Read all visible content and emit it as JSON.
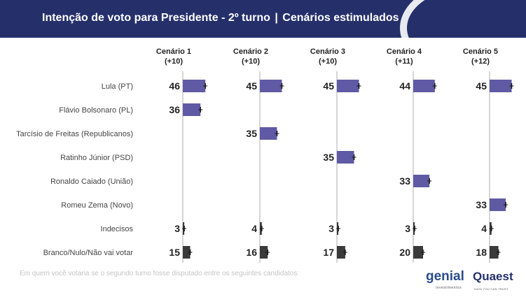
{
  "title": "Intenção de voto para Presidente - 2º turno | Cenários estimulados",
  "title_main": "Intenção de voto para Presidente - 2º turno",
  "title_sep": "|",
  "title_sub": "Cenários estimulados",
  "footnote": "Em quem você votaria se o segundo turno fosse disputado entre os seguintes candidatos:",
  "logos": {
    "genial": "genial",
    "genial_sub": "investimentos",
    "quaest": "Quaest",
    "quaest_sub": "DATA YOU CAN TRUST"
  },
  "colors": {
    "candidate_bar": "#5f5aa3",
    "other_bar": "#3a3a3a",
    "header_bg": "#25306b",
    "axis": "#c8c8c8"
  },
  "chart_data": {
    "type": "bar",
    "orientation": "horizontal",
    "rows": [
      "Lula (PT)",
      "Flávio Bolsonaro (PL)",
      "Tarcísio de Freitas (Republicanos)",
      "Ratinho Júnior (PSD)",
      "Ronaldo Caiado (União)",
      "Romeu Zema (Novo)",
      "Indecisos",
      "Branco/Nulo/Não vai votar"
    ],
    "row_kind": [
      "candidate",
      "candidate",
      "candidate",
      "candidate",
      "candidate",
      "candidate",
      "other",
      "other"
    ],
    "scenarios": [
      {
        "name": "Cenário 1",
        "diff": "(+10)",
        "values": [
          46,
          36,
          null,
          null,
          null,
          null,
          3,
          15
        ]
      },
      {
        "name": "Cenário 2",
        "diff": "(+10)",
        "values": [
          45,
          null,
          35,
          null,
          null,
          null,
          4,
          16
        ]
      },
      {
        "name": "Cenário 3",
        "diff": "(+10)",
        "values": [
          45,
          null,
          null,
          35,
          null,
          null,
          3,
          17
        ]
      },
      {
        "name": "Cenário 4",
        "diff": "(+11)",
        "values": [
          44,
          null,
          null,
          null,
          33,
          null,
          3,
          20
        ]
      },
      {
        "name": "Cenário 5",
        "diff": "(+12)",
        "values": [
          45,
          null,
          null,
          null,
          null,
          33,
          4,
          18
        ]
      }
    ],
    "xlim": [
      0,
      100
    ],
    "grid": false,
    "error_bars": true
  }
}
